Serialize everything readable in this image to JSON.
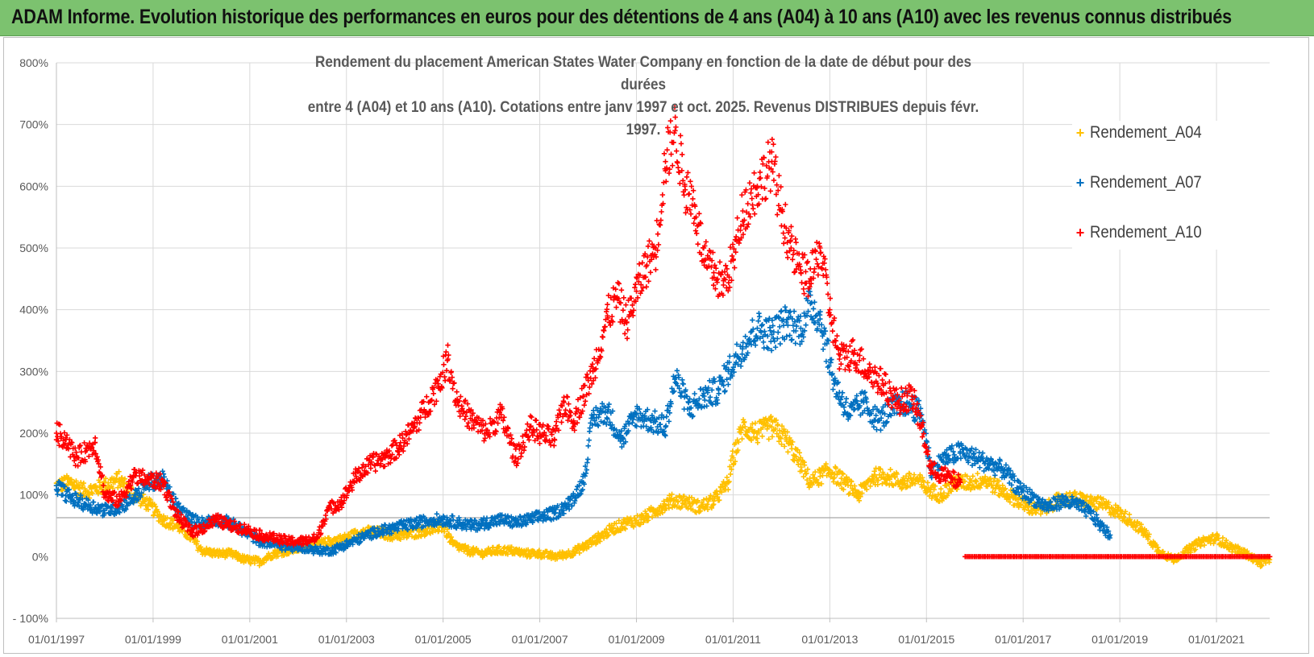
{
  "header": {
    "title": "ADAM Informe. Evolution historique des performances en euros pour des détentions de 4 ans (A04) à 10 ans (A10) avec les revenus connus distribués"
  },
  "chart_data": {
    "type": "scatter",
    "subtitle_line1": "Rendement du placement American States Water Company en fonction de la date de début pour des durées",
    "subtitle_line2": "entre 4 (A04) et 10 ans (A10). Cotations entre janv 1997 et oct. 2025. Revenus DISTRIBUES depuis févr. 1997.",
    "x_range": [
      1997.0,
      2022.1
    ],
    "ylim": [
      -100,
      800
    ],
    "y_ticks": [
      {
        "value": -100,
        "label": "- 100%"
      },
      {
        "value": 0,
        "label": "0%"
      },
      {
        "value": 100,
        "label": "100%"
      },
      {
        "value": 200,
        "label": "200%"
      },
      {
        "value": 300,
        "label": "300%"
      },
      {
        "value": 400,
        "label": "400%"
      },
      {
        "value": 500,
        "label": "500%"
      },
      {
        "value": 600,
        "label": "600%"
      },
      {
        "value": 700,
        "label": "700%"
      },
      {
        "value": 800,
        "label": "800%"
      }
    ],
    "x_ticks": [
      {
        "value": 1997,
        "label": "01/01/1997"
      },
      {
        "value": 1999,
        "label": "01/01/1999"
      },
      {
        "value": 2001,
        "label": "01/01/2001"
      },
      {
        "value": 2003,
        "label": "01/01/2003"
      },
      {
        "value": 2005,
        "label": "01/01/2005"
      },
      {
        "value": 2007,
        "label": "01/01/2007"
      },
      {
        "value": 2009,
        "label": "01/01/2009"
      },
      {
        "value": 2011,
        "label": "01/01/2011"
      },
      {
        "value": 2013,
        "label": "01/01/2013"
      },
      {
        "value": 2015,
        "label": "01/01/2015"
      },
      {
        "value": 2017,
        "label": "01/01/2017"
      },
      {
        "value": 2019,
        "label": "01/01/2019"
      },
      {
        "value": 2021,
        "label": "01/01/2021"
      }
    ],
    "reference_line": {
      "value": 63
    },
    "series": [
      {
        "name": "Rendement_A04",
        "color": "#ffc000",
        "points": [
          [
            1997.0,
            115
          ],
          [
            1997.3,
            120
          ],
          [
            1997.6,
            105
          ],
          [
            1998.0,
            115
          ],
          [
            1998.3,
            125
          ],
          [
            1998.6,
            100
          ],
          [
            1998.9,
            85
          ],
          [
            1999.2,
            60
          ],
          [
            1999.5,
            50
          ],
          [
            1999.8,
            30
          ],
          [
            2000.0,
            10
          ],
          [
            2000.3,
            5
          ],
          [
            2000.6,
            5
          ],
          [
            2000.9,
            -5
          ],
          [
            2001.2,
            -8
          ],
          [
            2001.5,
            5
          ],
          [
            2001.8,
            10
          ],
          [
            2002.1,
            15
          ],
          [
            2002.4,
            20
          ],
          [
            2002.7,
            25
          ],
          [
            2003.0,
            30
          ],
          [
            2003.3,
            40
          ],
          [
            2003.6,
            40
          ],
          [
            2003.9,
            35
          ],
          [
            2004.2,
            35
          ],
          [
            2004.5,
            40
          ],
          [
            2004.8,
            45
          ],
          [
            2005.0,
            50
          ],
          [
            2005.2,
            20
          ],
          [
            2005.5,
            10
          ],
          [
            2005.8,
            5
          ],
          [
            2006.1,
            10
          ],
          [
            2006.4,
            10
          ],
          [
            2006.7,
            5
          ],
          [
            2007.0,
            5
          ],
          [
            2007.3,
            0
          ],
          [
            2007.6,
            5
          ],
          [
            2007.9,
            15
          ],
          [
            2008.2,
            30
          ],
          [
            2008.5,
            45
          ],
          [
            2008.8,
            55
          ],
          [
            2009.1,
            60
          ],
          [
            2009.4,
            75
          ],
          [
            2009.7,
            90
          ],
          [
            2010.0,
            90
          ],
          [
            2010.3,
            80
          ],
          [
            2010.6,
            90
          ],
          [
            2010.9,
            120
          ],
          [
            2011.0,
            160
          ],
          [
            2011.2,
            210
          ],
          [
            2011.5,
            200
          ],
          [
            2011.8,
            210
          ],
          [
            2012.1,
            190
          ],
          [
            2012.4,
            150
          ],
          [
            2012.6,
            120
          ],
          [
            2012.8,
            130
          ],
          [
            2013.0,
            140
          ],
          [
            2013.3,
            120
          ],
          [
            2013.6,
            100
          ],
          [
            2013.9,
            130
          ],
          [
            2014.2,
            130
          ],
          [
            2014.5,
            120
          ],
          [
            2014.8,
            125
          ],
          [
            2015.0,
            110
          ],
          [
            2015.3,
            100
          ],
          [
            2015.6,
            120
          ],
          [
            2015.9,
            120
          ],
          [
            2016.2,
            125
          ],
          [
            2016.5,
            110
          ],
          [
            2016.8,
            95
          ],
          [
            2017.1,
            80
          ],
          [
            2017.4,
            75
          ],
          [
            2017.7,
            90
          ],
          [
            2018.0,
            95
          ],
          [
            2018.3,
            90
          ],
          [
            2018.6,
            85
          ],
          [
            2018.9,
            75
          ],
          [
            2019.2,
            60
          ],
          [
            2019.5,
            40
          ],
          [
            2019.8,
            10
          ],
          [
            2020.1,
            -5
          ],
          [
            2020.4,
            10
          ],
          [
            2020.7,
            25
          ],
          [
            2021.0,
            30
          ],
          [
            2021.3,
            15
          ],
          [
            2021.6,
            5
          ],
          [
            2021.9,
            -10
          ],
          [
            2022.1,
            -5
          ]
        ]
      },
      {
        "name": "Rendement_A07",
        "color": "#0070c0",
        "points": [
          [
            1997.0,
            115
          ],
          [
            1997.3,
            95
          ],
          [
            1997.6,
            85
          ],
          [
            1998.0,
            75
          ],
          [
            1998.3,
            80
          ],
          [
            1998.6,
            95
          ],
          [
            1998.9,
            120
          ],
          [
            1999.2,
            125
          ],
          [
            1999.5,
            80
          ],
          [
            1999.8,
            60
          ],
          [
            2000.0,
            55
          ],
          [
            2000.3,
            60
          ],
          [
            2000.6,
            55
          ],
          [
            2000.9,
            40
          ],
          [
            2001.2,
            25
          ],
          [
            2001.5,
            20
          ],
          [
            2001.8,
            15
          ],
          [
            2002.1,
            15
          ],
          [
            2002.4,
            10
          ],
          [
            2002.7,
            10
          ],
          [
            2003.0,
            20
          ],
          [
            2003.3,
            30
          ],
          [
            2003.6,
            40
          ],
          [
            2003.9,
            45
          ],
          [
            2004.2,
            50
          ],
          [
            2004.5,
            55
          ],
          [
            2004.8,
            60
          ],
          [
            2005.0,
            60
          ],
          [
            2005.3,
            55
          ],
          [
            2005.6,
            50
          ],
          [
            2005.9,
            55
          ],
          [
            2006.2,
            60
          ],
          [
            2006.5,
            55
          ],
          [
            2006.8,
            60
          ],
          [
            2007.0,
            65
          ],
          [
            2007.3,
            70
          ],
          [
            2007.6,
            85
          ],
          [
            2007.9,
            120
          ],
          [
            2008.1,
            225
          ],
          [
            2008.4,
            235
          ],
          [
            2008.7,
            190
          ],
          [
            2009.0,
            230
          ],
          [
            2009.3,
            220
          ],
          [
            2009.6,
            210
          ],
          [
            2009.8,
            290
          ],
          [
            2010.1,
            240
          ],
          [
            2010.4,
            260
          ],
          [
            2010.7,
            270
          ],
          [
            2010.9,
            300
          ],
          [
            2011.2,
            340
          ],
          [
            2011.5,
            370
          ],
          [
            2011.8,
            360
          ],
          [
            2012.1,
            380
          ],
          [
            2012.4,
            370
          ],
          [
            2012.6,
            410
          ],
          [
            2012.8,
            385
          ],
          [
            2013.1,
            280
          ],
          [
            2013.4,
            230
          ],
          [
            2013.7,
            250
          ],
          [
            2014.0,
            220
          ],
          [
            2014.3,
            240
          ],
          [
            2014.6,
            250
          ],
          [
            2014.9,
            230
          ],
          [
            2015.1,
            140
          ],
          [
            2015.4,
            160
          ],
          [
            2015.7,
            170
          ],
          [
            2016.0,
            160
          ],
          [
            2016.3,
            150
          ],
          [
            2016.6,
            140
          ],
          [
            2016.9,
            110
          ],
          [
            2017.2,
            95
          ],
          [
            2017.5,
            80
          ],
          [
            2017.8,
            90
          ],
          [
            2018.1,
            85
          ],
          [
            2018.4,
            70
          ],
          [
            2018.6,
            50
          ],
          [
            2018.8,
            35
          ]
        ]
      },
      {
        "name": "Rendement_A10",
        "color": "#ff0000",
        "points": [
          [
            1997.0,
            200
          ],
          [
            1997.2,
            190
          ],
          [
            1997.4,
            160
          ],
          [
            1997.6,
            170
          ],
          [
            1997.8,
            185
          ],
          [
            1998.0,
            100
          ],
          [
            1998.3,
            90
          ],
          [
            1998.6,
            130
          ],
          [
            1998.9,
            125
          ],
          [
            1999.2,
            120
          ],
          [
            1999.5,
            65
          ],
          [
            1999.8,
            40
          ],
          [
            2000.0,
            45
          ],
          [
            2000.3,
            60
          ],
          [
            2000.6,
            50
          ],
          [
            2000.9,
            45
          ],
          [
            2001.2,
            35
          ],
          [
            2001.5,
            30
          ],
          [
            2001.8,
            25
          ],
          [
            2002.1,
            25
          ],
          [
            2002.4,
            30
          ],
          [
            2002.6,
            75
          ],
          [
            2002.9,
            90
          ],
          [
            2003.2,
            130
          ],
          [
            2003.5,
            150
          ],
          [
            2003.8,
            160
          ],
          [
            2004.1,
            180
          ],
          [
            2004.4,
            210
          ],
          [
            2004.7,
            250
          ],
          [
            2004.9,
            280
          ],
          [
            2005.1,
            320
          ],
          [
            2005.3,
            250
          ],
          [
            2005.6,
            220
          ],
          [
            2005.9,
            200
          ],
          [
            2006.2,
            230
          ],
          [
            2006.5,
            160
          ],
          [
            2006.8,
            210
          ],
          [
            2007.0,
            200
          ],
          [
            2007.3,
            190
          ],
          [
            2007.5,
            250
          ],
          [
            2007.7,
            220
          ],
          [
            2007.9,
            260
          ],
          [
            2008.1,
            300
          ],
          [
            2008.4,
            390
          ],
          [
            2008.6,
            420
          ],
          [
            2008.8,
            380
          ],
          [
            2009.0,
            430
          ],
          [
            2009.2,
            470
          ],
          [
            2009.4,
            500
          ],
          [
            2009.6,
            640
          ],
          [
            2009.8,
            690
          ],
          [
            2010.0,
            600
          ],
          [
            2010.2,
            570
          ],
          [
            2010.4,
            480
          ],
          [
            2010.6,
            460
          ],
          [
            2010.8,
            440
          ],
          [
            2011.0,
            480
          ],
          [
            2011.2,
            560
          ],
          [
            2011.5,
            600
          ],
          [
            2011.8,
            640
          ],
          [
            2012.0,
            560
          ],
          [
            2012.2,
            500
          ],
          [
            2012.4,
            460
          ],
          [
            2012.6,
            450
          ],
          [
            2012.8,
            500
          ],
          [
            2013.0,
            400
          ],
          [
            2013.2,
            320
          ],
          [
            2013.5,
            330
          ],
          [
            2013.8,
            300
          ],
          [
            2014.1,
            280
          ],
          [
            2014.4,
            250
          ],
          [
            2014.7,
            260
          ],
          [
            2014.9,
            210
          ],
          [
            2015.1,
            140
          ],
          [
            2015.4,
            130
          ],
          [
            2015.7,
            120
          ]
        ]
      },
      {
        "name": "Rendement_A10_zero",
        "color": "#ff0000",
        "points": [
          [
            2015.8,
            0
          ],
          [
            2022.1,
            0
          ]
        ]
      }
    ],
    "legend": [
      {
        "label": "Rendement_A04",
        "color": "#ffc000"
      },
      {
        "label": "Rendement_A07",
        "color": "#0070c0"
      },
      {
        "label": "Rendement_A10",
        "color": "#ff0000"
      }
    ]
  }
}
